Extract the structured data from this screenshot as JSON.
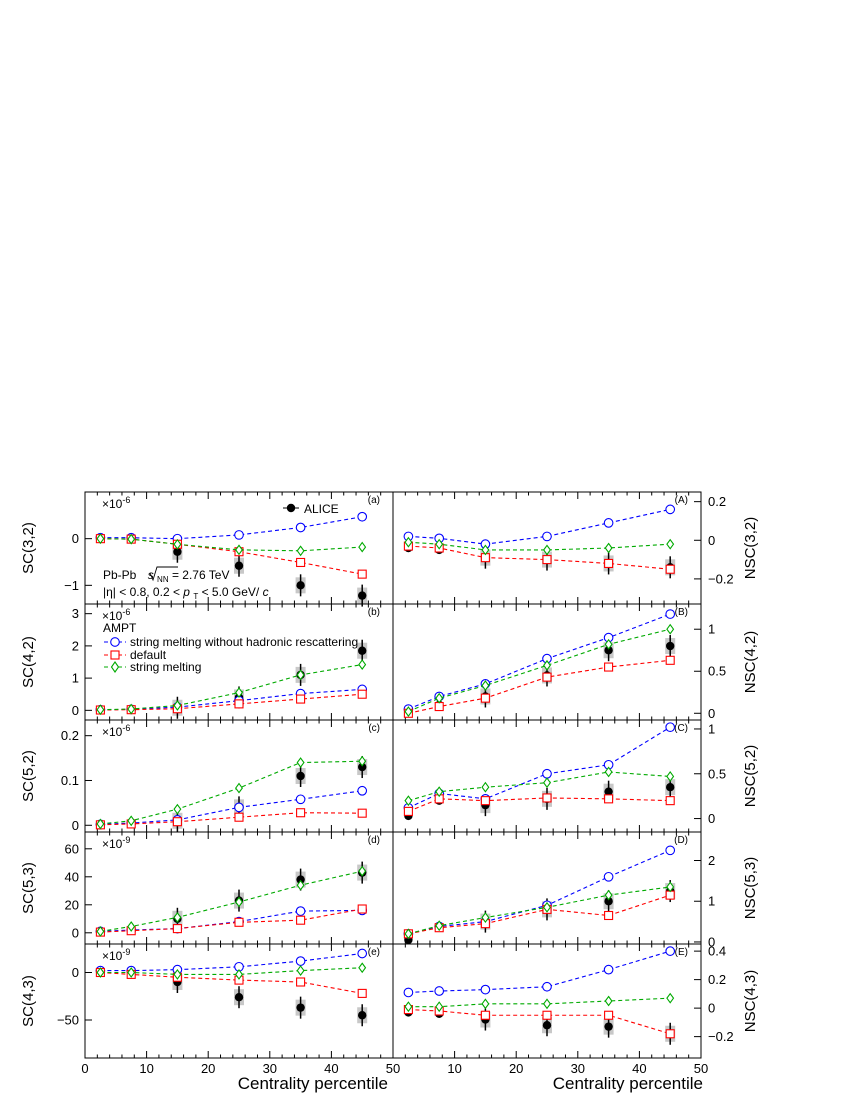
{
  "figure": {
    "xlabel": "Centrality percentile",
    "xticks": [
      0,
      10,
      20,
      30,
      40,
      50
    ],
    "legend": {
      "alice": "ALICE",
      "ampt_title": "AMPT",
      "models": [
        "string melting without hadronic rescattering",
        "default",
        "string melting"
      ]
    },
    "annotation": {
      "system": "Pb-Pb",
      "sqrt": "s",
      "sub": "NN",
      "energy": " = 2.76 TeV",
      "line2a": "|η| < 0.8, 0.2 < ",
      "line2p": "p",
      "line2t": "T",
      "line2b": " < 5.0 GeV/",
      "line2c": "c"
    },
    "colors": {
      "alice": "#000000",
      "sm_norescatter": "#0000ff",
      "default": "#ff0000",
      "string_melting": "#00aa00",
      "syst_box": "#c8c8c8"
    }
  },
  "chart_data": [
    {
      "type": "scatter",
      "panel_label": "(a)",
      "ylabel": "SC(3,2)",
      "exponent": "×10",
      "exponent_power": "-6",
      "yticks": [
        0,
        -1
      ],
      "xlim": [
        0,
        50
      ],
      "ylim": [
        -1.4,
        1.0
      ],
      "x": [
        2.5,
        7.5,
        15,
        25,
        35,
        45
      ],
      "series": [
        {
          "name": "ALICE",
          "values": [
            0.0,
            -0.01,
            -0.28,
            -0.58,
            -1.0,
            -1.22
          ]
        },
        {
          "name": "string melting without hadronic rescattering",
          "values": [
            0.02,
            0.02,
            0.0,
            0.08,
            0.24,
            0.47
          ]
        },
        {
          "name": "default",
          "values": [
            0.0,
            -0.01,
            -0.12,
            -0.28,
            -0.51,
            -0.76
          ]
        },
        {
          "name": "string melting",
          "values": [
            0.0,
            -0.01,
            -0.12,
            -0.24,
            -0.26,
            -0.18
          ]
        }
      ]
    },
    {
      "type": "scatter",
      "panel_label": "(b)",
      "ylabel": "SC(4,2)",
      "exponent": "×10",
      "exponent_power": "-6",
      "yticks": [
        0,
        1,
        2,
        3
      ],
      "xlim": [
        0,
        50
      ],
      "ylim": [
        -0.3,
        3.3
      ],
      "x": [
        2.5,
        7.5,
        15,
        25,
        35,
        45
      ],
      "series": [
        {
          "name": "ALICE",
          "values": [
            0.01,
            0.02,
            0.08,
            0.4,
            1.1,
            1.85
          ]
        },
        {
          "name": "string melting without hadronic rescattering",
          "values": [
            0.02,
            0.03,
            0.1,
            0.3,
            0.52,
            0.65
          ]
        },
        {
          "name": "default",
          "values": [
            0.01,
            0.02,
            0.05,
            0.2,
            0.35,
            0.5
          ]
        },
        {
          "name": "string melting",
          "values": [
            0.02,
            0.04,
            0.15,
            0.55,
            1.1,
            1.42
          ]
        }
      ]
    },
    {
      "type": "scatter",
      "panel_label": "(c)",
      "ylabel": "SC(5,2)",
      "exponent": "×10",
      "exponent_power": "-6",
      "yticks": [
        0,
        0.1,
        0.2
      ],
      "xlim": [
        0,
        50
      ],
      "ylim": [
        -0.015,
        0.235
      ],
      "x": [
        2.5,
        7.5,
        15,
        25,
        35,
        45
      ],
      "series": [
        {
          "name": "ALICE",
          "values": [
            0.0,
            0.005,
            0.01,
            0.04,
            0.11,
            0.13
          ]
        },
        {
          "name": "string melting without hadronic rescattering",
          "values": [
            0.002,
            0.005,
            0.012,
            0.04,
            0.058,
            0.077
          ]
        },
        {
          "name": "default",
          "values": [
            0.001,
            0.003,
            0.008,
            0.018,
            0.028,
            0.027
          ]
        },
        {
          "name": "string melting",
          "values": [
            0.003,
            0.01,
            0.036,
            0.083,
            0.14,
            0.143
          ]
        }
      ]
    },
    {
      "type": "scatter",
      "panel_label": "(d)",
      "ylabel": "SC(5,3)",
      "exponent": "×10",
      "exponent_power": "-9",
      "yticks": [
        0,
        20,
        40,
        60
      ],
      "xlim": [
        0,
        50
      ],
      "ylim": [
        -8,
        72
      ],
      "x": [
        2.5,
        7.5,
        15,
        25,
        35,
        45
      ],
      "series": [
        {
          "name": "ALICE",
          "values": [
            0.5,
            2.5,
            10,
            23,
            38,
            43
          ]
        },
        {
          "name": "string melting without hadronic rescattering",
          "values": [
            1,
            2,
            3,
            8,
            15.5,
            16
          ]
        },
        {
          "name": "default",
          "values": [
            0.5,
            1.5,
            3,
            7.5,
            9,
            17
          ]
        },
        {
          "name": "string melting",
          "values": [
            1,
            4.5,
            11,
            22,
            34,
            44
          ]
        }
      ]
    },
    {
      "type": "scatter",
      "panel_label": "(e)",
      "ylabel": "SC(4,3)",
      "exponent": "×10",
      "exponent_power": "-9",
      "yticks": [
        0,
        -50
      ],
      "xlim": [
        0,
        50
      ],
      "ylim": [
        -90,
        30
      ],
      "x": [
        2.5,
        7.5,
        15,
        25,
        35,
        45
      ],
      "series": [
        {
          "name": "ALICE",
          "values": [
            0,
            -2,
            -10,
            -26,
            -37,
            -45
          ]
        },
        {
          "name": "string melting without hadronic rescattering",
          "values": [
            2,
            2,
            3,
            6,
            12,
            20
          ]
        },
        {
          "name": "default",
          "values": [
            0,
            -2,
            -5,
            -8,
            -10,
            -22
          ]
        },
        {
          "name": "string melting",
          "values": [
            0,
            0,
            -2,
            -2,
            2,
            5
          ]
        }
      ]
    },
    {
      "type": "scatter",
      "panel_label": "(A)",
      "ylabel": "NSC(3,2)",
      "yticks": [
        0.2,
        0,
        -0.2
      ],
      "xlim": [
        0,
        50
      ],
      "ylim": [
        -0.33,
        0.25
      ],
      "x": [
        2.5,
        7.5,
        15,
        25,
        35,
        45
      ],
      "series": [
        {
          "name": "ALICE",
          "values": [
            -0.04,
            -0.05,
            -0.09,
            -0.1,
            -0.12,
            -0.14
          ]
        },
        {
          "name": "string melting without hadronic rescattering",
          "values": [
            0.02,
            0.01,
            -0.02,
            0.02,
            0.09,
            0.16
          ]
        },
        {
          "name": "default",
          "values": [
            -0.03,
            -0.04,
            -0.09,
            -0.1,
            -0.12,
            -0.15
          ]
        },
        {
          "name": "string melting",
          "values": [
            -0.01,
            -0.02,
            -0.05,
            -0.05,
            -0.04,
            -0.02
          ]
        }
      ]
    },
    {
      "type": "scatter",
      "panel_label": "(B)",
      "ylabel": "NSC(4,2)",
      "yticks": [
        0,
        0.5,
        1
      ],
      "xlim": [
        0,
        50
      ],
      "ylim": [
        -0.08,
        1.3
      ],
      "x": [
        2.5,
        7.5,
        15,
        25,
        35,
        45
      ],
      "series": [
        {
          "name": "ALICE",
          "values": [
            0.0,
            0.1,
            0.2,
            0.45,
            0.75,
            0.8
          ]
        },
        {
          "name": "string melting without hadronic rescattering",
          "values": [
            0.05,
            0.2,
            0.35,
            0.65,
            0.9,
            1.18
          ]
        },
        {
          "name": "default",
          "values": [
            0.0,
            0.08,
            0.18,
            0.43,
            0.55,
            0.63
          ]
        },
        {
          "name": "string melting",
          "values": [
            0.02,
            0.18,
            0.33,
            0.57,
            0.82,
            1.0
          ]
        }
      ]
    },
    {
      "type": "scatter",
      "panel_label": "(C)",
      "ylabel": "NSC(5,2)",
      "yticks": [
        0,
        0.5,
        1
      ],
      "xlim": [
        0,
        50
      ],
      "ylim": [
        -0.15,
        1.1
      ],
      "x": [
        2.5,
        7.5,
        15,
        25,
        35,
        45
      ],
      "series": [
        {
          "name": "ALICE",
          "values": [
            0.03,
            0.2,
            0.15,
            0.22,
            0.3,
            0.35
          ]
        },
        {
          "name": "string melting without hadronic rescattering",
          "values": [
            0.12,
            0.28,
            0.22,
            0.5,
            0.6,
            1.02
          ]
        },
        {
          "name": "default",
          "values": [
            0.08,
            0.22,
            0.2,
            0.23,
            0.22,
            0.2
          ]
        },
        {
          "name": "string melting",
          "values": [
            0.2,
            0.3,
            0.35,
            0.4,
            0.52,
            0.47
          ]
        }
      ]
    },
    {
      "type": "scatter",
      "panel_label": "(D)",
      "ylabel": "NSC(5,3)",
      "yticks": [
        0,
        1,
        2
      ],
      "xlim": [
        0,
        50
      ],
      "ylim": [
        -0.05,
        2.7
      ],
      "x": [
        2.5,
        7.5,
        15,
        25,
        35,
        45
      ],
      "series": [
        {
          "name": "ALICE",
          "values": [
            0.05,
            0.35,
            0.5,
            0.8,
            1.0,
            1.25
          ]
        },
        {
          "name": "string melting without hadronic rescattering",
          "values": [
            0.2,
            0.38,
            0.5,
            0.9,
            1.6,
            2.25
          ]
        },
        {
          "name": "default",
          "values": [
            0.2,
            0.35,
            0.45,
            0.8,
            0.65,
            1.15
          ]
        },
        {
          "name": "string melting",
          "values": [
            0.2,
            0.4,
            0.6,
            0.85,
            1.15,
            1.35
          ]
        }
      ]
    },
    {
      "type": "scatter",
      "panel_label": "(E)",
      "ylabel": "NSC(4,3)",
      "yticks": [
        0.4,
        0.2,
        0,
        -0.2
      ],
      "xlim": [
        0,
        50
      ],
      "ylim": [
        -0.35,
        0.45
      ],
      "x": [
        2.5,
        7.5,
        15,
        25,
        35,
        45
      ],
      "series": [
        {
          "name": "ALICE",
          "values": [
            -0.03,
            -0.04,
            -0.08,
            -0.12,
            -0.13,
            -0.18
          ]
        },
        {
          "name": "string melting without hadronic rescattering",
          "values": [
            0.11,
            0.12,
            0.13,
            0.15,
            0.27,
            0.4
          ]
        },
        {
          "name": "default",
          "values": [
            -0.01,
            -0.02,
            -0.05,
            -0.05,
            -0.05,
            -0.18
          ]
        },
        {
          "name": "string melting",
          "values": [
            0.01,
            0.01,
            0.03,
            0.03,
            0.05,
            0.07
          ]
        }
      ]
    }
  ]
}
